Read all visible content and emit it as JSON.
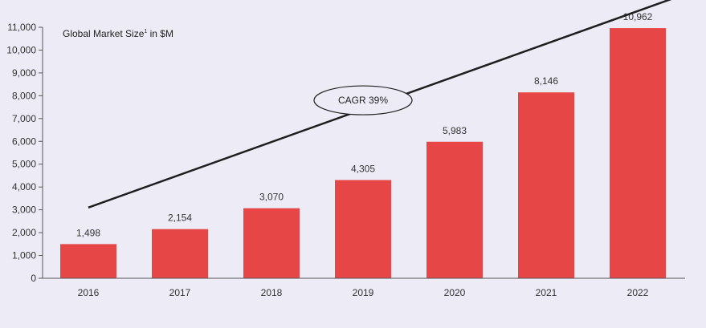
{
  "colors": {
    "bar": "#e64646",
    "background": "#edecf6",
    "axis": "#555555",
    "trend": "#1f1f1f"
  },
  "chart_data": {
    "type": "bar",
    "title": "Global Market Size",
    "title_superscript": "1",
    "title_suffix": " in $M",
    "categories": [
      "2016",
      "2017",
      "2018",
      "2019",
      "2020",
      "2021",
      "2022"
    ],
    "values": [
      1498,
      2154,
      3070,
      4305,
      5983,
      8146,
      10962
    ],
    "value_labels": [
      "1,498",
      "2,154",
      "3,070",
      "4,305",
      "5,983",
      "8,146",
      "10,962"
    ],
    "ylim": [
      0,
      11000
    ],
    "yticks": [
      0,
      1000,
      2000,
      3000,
      4000,
      5000,
      6000,
      7000,
      8000,
      9000,
      10000,
      11000
    ],
    "ytick_labels": [
      "0",
      "1,000",
      "2,000",
      "3,000",
      "4,000",
      "5,000",
      "6,000",
      "7,000",
      "8,000",
      "9,000",
      "10,000",
      "11,000"
    ],
    "xlabel": "",
    "ylabel": "",
    "annotation": {
      "text": "CAGR 39%",
      "trend_start": [
        2016,
        3100
      ],
      "trend_end": [
        2022.55,
        12500
      ],
      "label_at": [
        2019,
        7800
      ]
    }
  }
}
